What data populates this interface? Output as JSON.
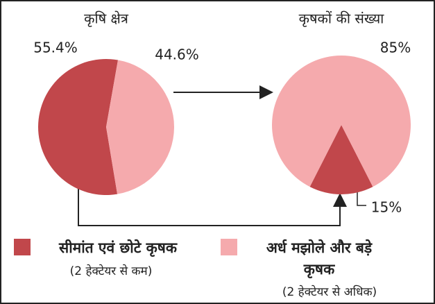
{
  "chart_data": [
    {
      "type": "pie",
      "title": "कृषि क्षेत्र",
      "categories": [
        "सीमांत एवं छोटे कृषक",
        "अर्ध मझोले और बड़े कृषक"
      ],
      "category_notes": [
        "(2 हेक्टेयर से कम)",
        "(2 हेक्टेयर से अधिक)"
      ],
      "values": [
        55.4,
        44.6
      ],
      "value_labels": [
        "55.4%",
        "44.6%"
      ],
      "colors": [
        "#c1474b",
        "#f5aaad"
      ]
    },
    {
      "type": "pie",
      "title": "कृषकों की संख्या",
      "categories": [
        "सीमांत एवं छोटे कृषक",
        "अर्ध मझोले और बड़े कृषक"
      ],
      "values": [
        15,
        85
      ],
      "value_labels": [
        "15%",
        "85%"
      ],
      "colors": [
        "#c1474b",
        "#f5aaad"
      ]
    }
  ]
}
